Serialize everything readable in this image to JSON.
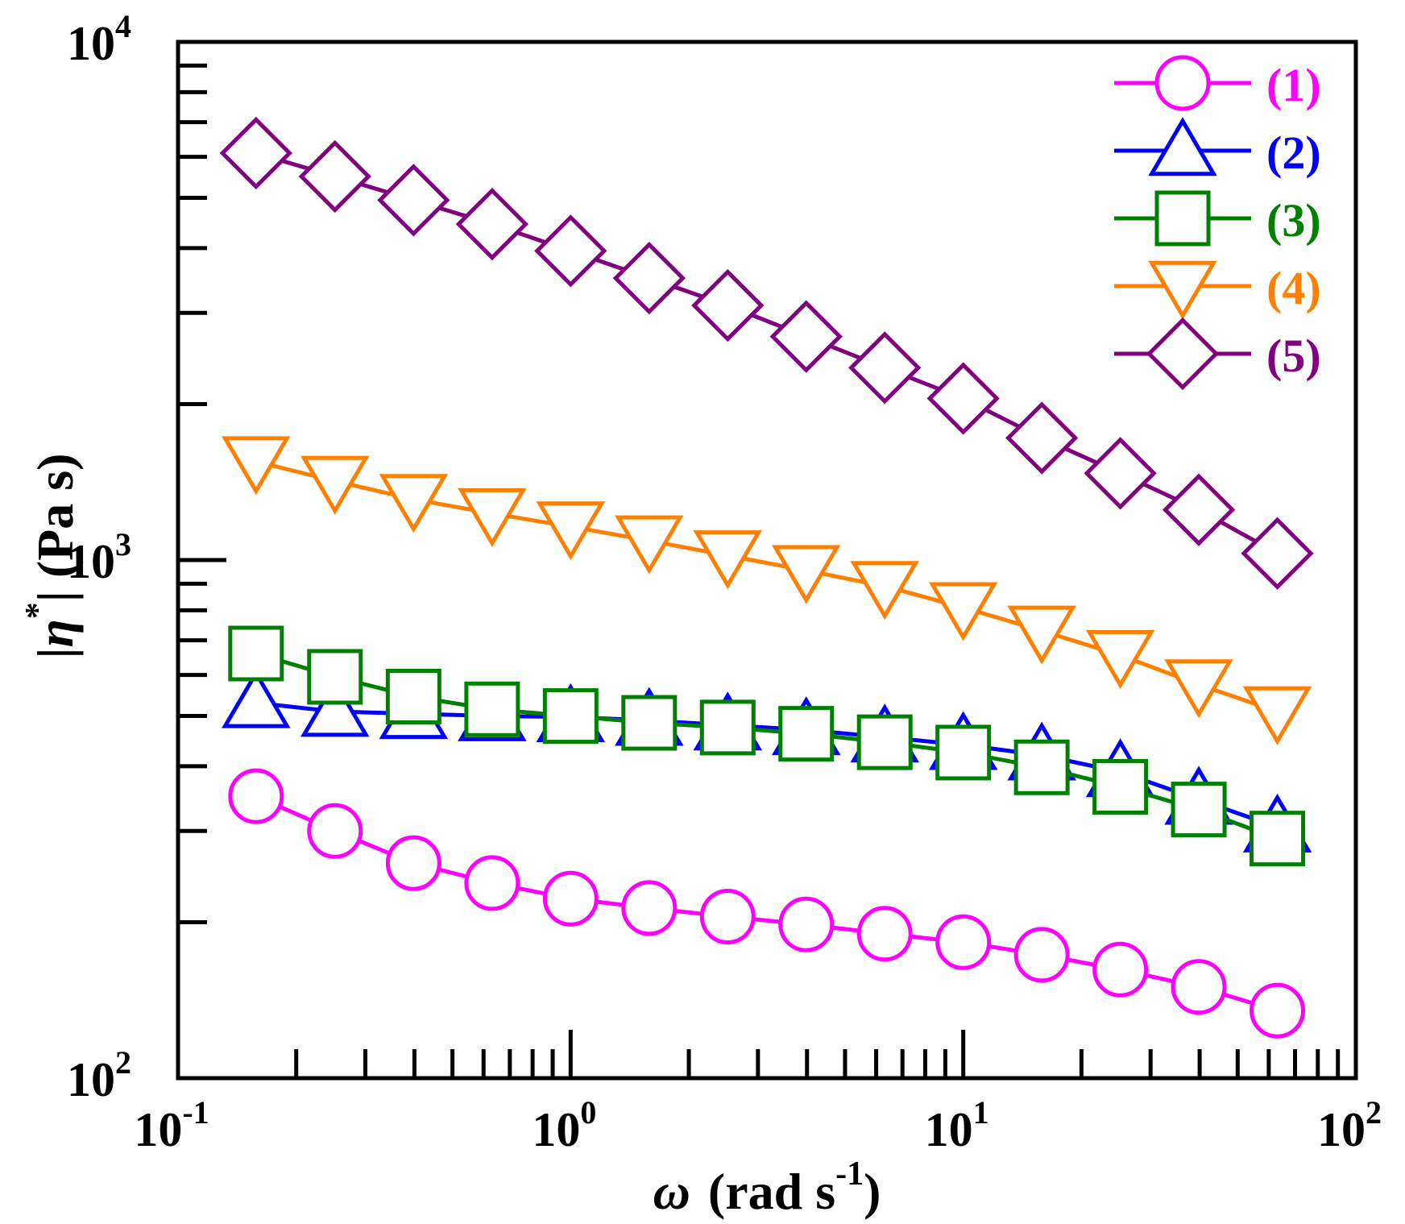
{
  "chart_data": {
    "type": "line",
    "x_scale": "log",
    "y_scale": "log",
    "xlim": [
      0.1,
      100
    ],
    "ylim": [
      100,
      10000
    ],
    "grid": false,
    "legend_position": "top-right",
    "xlabel": {
      "symbol": "ω",
      "text": "(rad s",
      "sup": "-1",
      "close": ")"
    },
    "ylabel": {
      "bar_left": "|",
      "symbol": "η",
      "sup": "*",
      "bar_right": "|",
      "text": "(Pa s)"
    },
    "x_ticks": [
      {
        "value": 0.1,
        "base": "10",
        "exp": "-1"
      },
      {
        "value": 1,
        "base": "10",
        "exp": "0"
      },
      {
        "value": 10,
        "base": "10",
        "exp": "1"
      },
      {
        "value": 100,
        "base": "10",
        "exp": "2"
      }
    ],
    "y_ticks": [
      {
        "value": 100,
        "base": "10",
        "exp": "2"
      },
      {
        "value": 1000,
        "base": "10",
        "exp": "3"
      },
      {
        "value": 10000,
        "base": "10",
        "exp": "4"
      }
    ],
    "x": [
      0.158,
      0.251,
      0.398,
      0.631,
      1.0,
      1.585,
      2.512,
      3.981,
      6.31,
      10.0,
      15.85,
      25.12,
      39.81,
      63.1
    ],
    "series": [
      {
        "name": "(1)",
        "marker": "circle",
        "color": "#ff00ff",
        "values": [
          350,
          300,
          260,
          238,
          222,
          213,
          205,
          198,
          190,
          183,
          173,
          162,
          150,
          135
        ]
      },
      {
        "name": "(2)",
        "marker": "triangle-up",
        "color": "#0000ff",
        "values": [
          530,
          510,
          505,
          500,
          498,
          490,
          480,
          470,
          455,
          440,
          420,
          390,
          345,
          305
        ]
      },
      {
        "name": "(3)",
        "marker": "square",
        "color": "#008000",
        "values": [
          660,
          595,
          545,
          515,
          500,
          485,
          475,
          462,
          445,
          425,
          398,
          365,
          330,
          290
        ]
      },
      {
        "name": "(4)",
        "marker": "triangle-down",
        "color": "#ff8000",
        "values": [
          1550,
          1420,
          1310,
          1230,
          1160,
          1090,
          1020,
          955,
          890,
          810,
          730,
          655,
          575,
          510
        ]
      },
      {
        "name": "(5)",
        "marker": "diamond",
        "color": "#800080",
        "values": [
          6100,
          5500,
          4950,
          4450,
          3950,
          3500,
          3100,
          2700,
          2350,
          2050,
          1720,
          1470,
          1250,
          1030
        ]
      }
    ]
  }
}
